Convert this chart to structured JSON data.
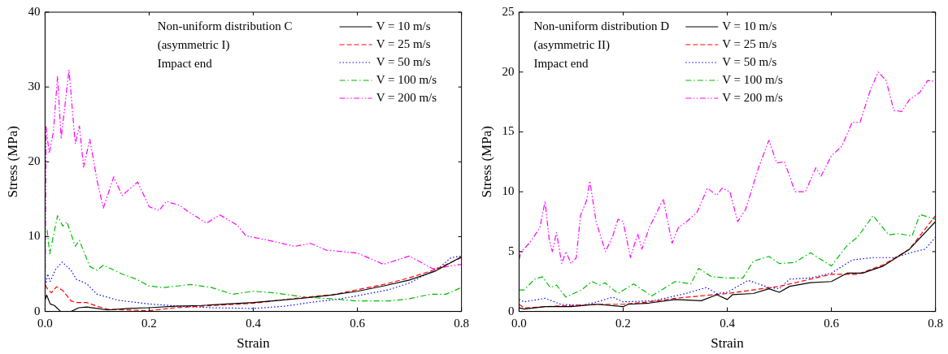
{
  "chart_data": [
    {
      "type": "line",
      "xlabel": "Strain",
      "ylabel": "Stress (MPa)",
      "xlim": [
        0,
        0.8
      ],
      "ylim": [
        0,
        40
      ],
      "xticks": [
        {
          "value": 0,
          "label": "0.0"
        },
        0.2,
        0.4,
        0.6,
        0.8
      ],
      "yticks": [
        0,
        10,
        20,
        30,
        40
      ],
      "grid": false,
      "legend": "top right",
      "marker": "none",
      "annotations": [
        "Non-uniform distribution C",
        "(asymmetric I)",
        "Impact end"
      ],
      "series": [
        {
          "name": "V = 10 m/s",
          "color": "#000000",
          "line_style": "solid",
          "x": [
            0,
            0.003,
            0.01,
            0.018,
            0.03,
            0.05,
            0.065,
            0.08,
            0.1,
            0.12,
            0.16,
            0.2,
            0.25,
            0.3,
            0.35,
            0.4,
            0.45,
            0.5,
            0.55,
            0.6,
            0.65,
            0.7,
            0.75,
            0.8
          ],
          "values": [
            1.5,
            2.2,
            1.0,
            0.8,
            0.0,
            0.0,
            0.5,
            0.6,
            0.4,
            0.2,
            0.4,
            0.5,
            0.7,
            0.8,
            1.0,
            1.2,
            1.5,
            1.8,
            2.2,
            2.7,
            3.4,
            4.2,
            5.4,
            7.3
          ]
        },
        {
          "name": "V = 25 m/s",
          "color": "#ff0000",
          "line_style": "dashed",
          "x": [
            0,
            0.005,
            0.012,
            0.022,
            0.034,
            0.05,
            0.06,
            0.08,
            0.1,
            0.12,
            0.2,
            0.25,
            0.3,
            0.35,
            0.4,
            0.45,
            0.5,
            0.55,
            0.6,
            0.65,
            0.7,
            0.75,
            0.8
          ],
          "values": [
            3.5,
            3.0,
            2.5,
            3.3,
            2.8,
            1.4,
            1.2,
            1.2,
            0.7,
            0.3,
            0.1,
            0.5,
            0.7,
            0.9,
            1.1,
            1.5,
            1.9,
            2.2,
            2.9,
            3.6,
            4.5,
            5.6,
            7.2
          ]
        },
        {
          "name": "V = 50 m/s",
          "color": "#0000ff",
          "line_style": "dotted",
          "x": [
            0,
            0.005,
            0.01,
            0.02,
            0.033,
            0.05,
            0.06,
            0.08,
            0.1,
            0.14,
            0.2,
            0.26,
            0.32,
            0.4,
            0.46,
            0.52,
            0.56,
            0.6,
            0.66,
            0.7,
            0.76,
            0.78,
            0.8
          ],
          "values": [
            3.0,
            5.0,
            4.0,
            5.6,
            6.6,
            5.5,
            4.3,
            3.7,
            2.3,
            1.5,
            1.0,
            0.7,
            0.5,
            0.4,
            0.7,
            1.3,
            1.6,
            2.1,
            2.9,
            3.8,
            6.0,
            7.2,
            7.4
          ]
        },
        {
          "name": "V = 100 m/s",
          "color": "#00bb00",
          "line_style": "dashdot",
          "x": [
            0.004,
            0.009,
            0.024,
            0.034,
            0.042,
            0.058,
            0.066,
            0.086,
            0.1,
            0.112,
            0.148,
            0.176,
            0.2,
            0.227,
            0.28,
            0.32,
            0.36,
            0.4,
            0.44,
            0.5,
            0.55,
            0.6,
            0.66,
            0.7,
            0.74,
            0.77,
            0.8
          ],
          "values": [
            10.9,
            7.7,
            12.8,
            11.4,
            12.0,
            8.7,
            9.5,
            6.0,
            5.5,
            6.2,
            5.0,
            4.3,
            3.4,
            3.2,
            3.6,
            3.2,
            2.3,
            2.7,
            2.5,
            1.9,
            1.7,
            1.4,
            1.4,
            1.7,
            2.3,
            2.3,
            3.2
          ]
        },
        {
          "name": "V = 200 m/s",
          "color": "#ff00ff",
          "line_style": "dashdotdot",
          "x": [
            0,
            0.002,
            0.008,
            0.016,
            0.024,
            0.031,
            0.046,
            0.058,
            0.066,
            0.074,
            0.086,
            0.1,
            0.112,
            0.132,
            0.148,
            0.178,
            0.2,
            0.219,
            0.233,
            0.258,
            0.276,
            0.31,
            0.336,
            0.37,
            0.386,
            0.43,
            0.48,
            0.51,
            0.54,
            0.6,
            0.65,
            0.7,
            0.745,
            0.8
          ],
          "values": [
            0,
            24.7,
            21.1,
            24.0,
            31.4,
            23.1,
            32.3,
            22.4,
            24.8,
            19.3,
            23.0,
            17.5,
            13.8,
            18.0,
            15.5,
            17.3,
            14.0,
            13.5,
            14.7,
            14.2,
            13.3,
            11.8,
            12.9,
            11.5,
            10.1,
            9.5,
            8.7,
            9.1,
            8.2,
            7.8,
            6.3,
            7.4,
            5.7,
            6.3
          ]
        }
      ]
    },
    {
      "type": "line",
      "xlabel": "Strain",
      "ylabel": "Stress (MPa)",
      "xlim": [
        0,
        0.8
      ],
      "ylim": [
        0,
        25
      ],
      "xticks": [
        {
          "value": 0,
          "label": "0.0"
        },
        0.2,
        0.4,
        0.6,
        0.8
      ],
      "yticks": [
        0,
        5,
        10,
        15,
        20,
        25
      ],
      "grid": false,
      "legend": "top",
      "marker": "none",
      "annotations": [
        "Non-uniform distribution D",
        "(asymmetric II)",
        "Impact end"
      ],
      "series": [
        {
          "name": "V = 10 m/s",
          "color": "#000000",
          "line_style": "solid",
          "x": [
            0,
            0.01,
            0.05,
            0.1,
            0.15,
            0.2,
            0.21,
            0.25,
            0.3,
            0.35,
            0.38,
            0.4,
            0.41,
            0.45,
            0.48,
            0.5,
            0.52,
            0.56,
            0.6,
            0.63,
            0.66,
            0.7,
            0.75,
            0.8
          ],
          "values": [
            0.3,
            0.2,
            0.4,
            0.4,
            0.6,
            0.4,
            0.6,
            0.7,
            1.0,
            0.9,
            1.4,
            1.0,
            1.4,
            1.5,
            1.9,
            1.6,
            2.1,
            2.4,
            2.5,
            3.2,
            3.2,
            3.8,
            5.2,
            7.5
          ]
        },
        {
          "name": "V = 25 m/s",
          "color": "#ff0000",
          "line_style": "dashed",
          "x": [
            0,
            0.01,
            0.05,
            0.1,
            0.15,
            0.2,
            0.25,
            0.3,
            0.35,
            0.4,
            0.45,
            0.5,
            0.55,
            0.6,
            0.65,
            0.7,
            0.75,
            0.8
          ],
          "values": [
            0.6,
            0.3,
            0.4,
            0.5,
            0.6,
            0.6,
            0.8,
            1.1,
            1.3,
            1.5,
            1.8,
            2.1,
            2.6,
            3.1,
            3.1,
            3.9,
            5.2,
            8.0
          ]
        },
        {
          "name": "V = 50 m/s",
          "color": "#0000ff",
          "line_style": "dotted",
          "x": [
            0,
            0.01,
            0.05,
            0.08,
            0.12,
            0.15,
            0.18,
            0.2,
            0.26,
            0.32,
            0.36,
            0.38,
            0.4,
            0.44,
            0.48,
            0.5,
            0.52,
            0.56,
            0.6,
            0.64,
            0.68,
            0.72,
            0.76,
            0.78,
            0.8
          ],
          "values": [
            1.0,
            0.8,
            1.1,
            0.6,
            0.5,
            0.8,
            1.2,
            0.8,
            0.9,
            1.5,
            2.0,
            1.5,
            1.6,
            2.6,
            2.0,
            1.9,
            2.7,
            2.8,
            3.2,
            4.3,
            4.5,
            4.5,
            5.0,
            5.2,
            6.2
          ]
        },
        {
          "name": "V = 100 m/s",
          "color": "#00bb00",
          "line_style": "dashdot",
          "x": [
            0,
            0.01,
            0.03,
            0.045,
            0.06,
            0.072,
            0.09,
            0.12,
            0.14,
            0.155,
            0.165,
            0.19,
            0.22,
            0.255,
            0.3,
            0.33,
            0.345,
            0.37,
            0.4,
            0.43,
            0.45,
            0.48,
            0.5,
            0.53,
            0.56,
            0.6,
            0.63,
            0.65,
            0.68,
            0.71,
            0.73,
            0.755,
            0.77,
            0.8
          ],
          "values": [
            1.8,
            1.8,
            2.7,
            2.9,
            2.0,
            2.2,
            1.2,
            1.8,
            2.5,
            2.2,
            2.4,
            1.5,
            2.3,
            1.3,
            2.5,
            2.3,
            3.6,
            2.9,
            2.8,
            2.8,
            4.2,
            4.6,
            4.0,
            4.1,
            4.9,
            3.8,
            5.5,
            6.2,
            8.0,
            6.4,
            6.5,
            6.3,
            8.1,
            7.7
          ]
        },
        {
          "name": "V = 200 m/s",
          "color": "#ff00ff",
          "line_style": "dashdotdot",
          "x": [
            0,
            0.004,
            0.02,
            0.04,
            0.05,
            0.058,
            0.064,
            0.072,
            0.082,
            0.09,
            0.1,
            0.11,
            0.118,
            0.13,
            0.136,
            0.148,
            0.166,
            0.18,
            0.19,
            0.2,
            0.214,
            0.228,
            0.236,
            0.25,
            0.265,
            0.277,
            0.294,
            0.306,
            0.322,
            0.342,
            0.362,
            0.38,
            0.39,
            0.405,
            0.42,
            0.435,
            0.46,
            0.48,
            0.495,
            0.51,
            0.53,
            0.55,
            0.57,
            0.58,
            0.6,
            0.62,
            0.64,
            0.655,
            0.675,
            0.69,
            0.705,
            0.72,
            0.735,
            0.75,
            0.77,
            0.785,
            0.8
          ],
          "values": [
            4.3,
            5.0,
            5.7,
            7.0,
            9.2,
            6.0,
            5.0,
            6.6,
            4.0,
            5.0,
            4.0,
            4.5,
            8.0,
            9.3,
            10.9,
            7.5,
            5.0,
            6.3,
            7.7,
            7.5,
            4.5,
            6.5,
            5.2,
            7.0,
            8.3,
            9.4,
            5.7,
            7.0,
            7.5,
            8.3,
            10.3,
            9.7,
            10.3,
            10.0,
            7.5,
            8.5,
            12.0,
            14.3,
            12.4,
            12.5,
            10.0,
            10.0,
            12.0,
            11.3,
            13.0,
            13.8,
            15.8,
            15.8,
            18.5,
            20.0,
            19.3,
            16.8,
            16.7,
            17.7,
            18.3,
            19.3,
            19.2
          ]
        }
      ]
    }
  ]
}
